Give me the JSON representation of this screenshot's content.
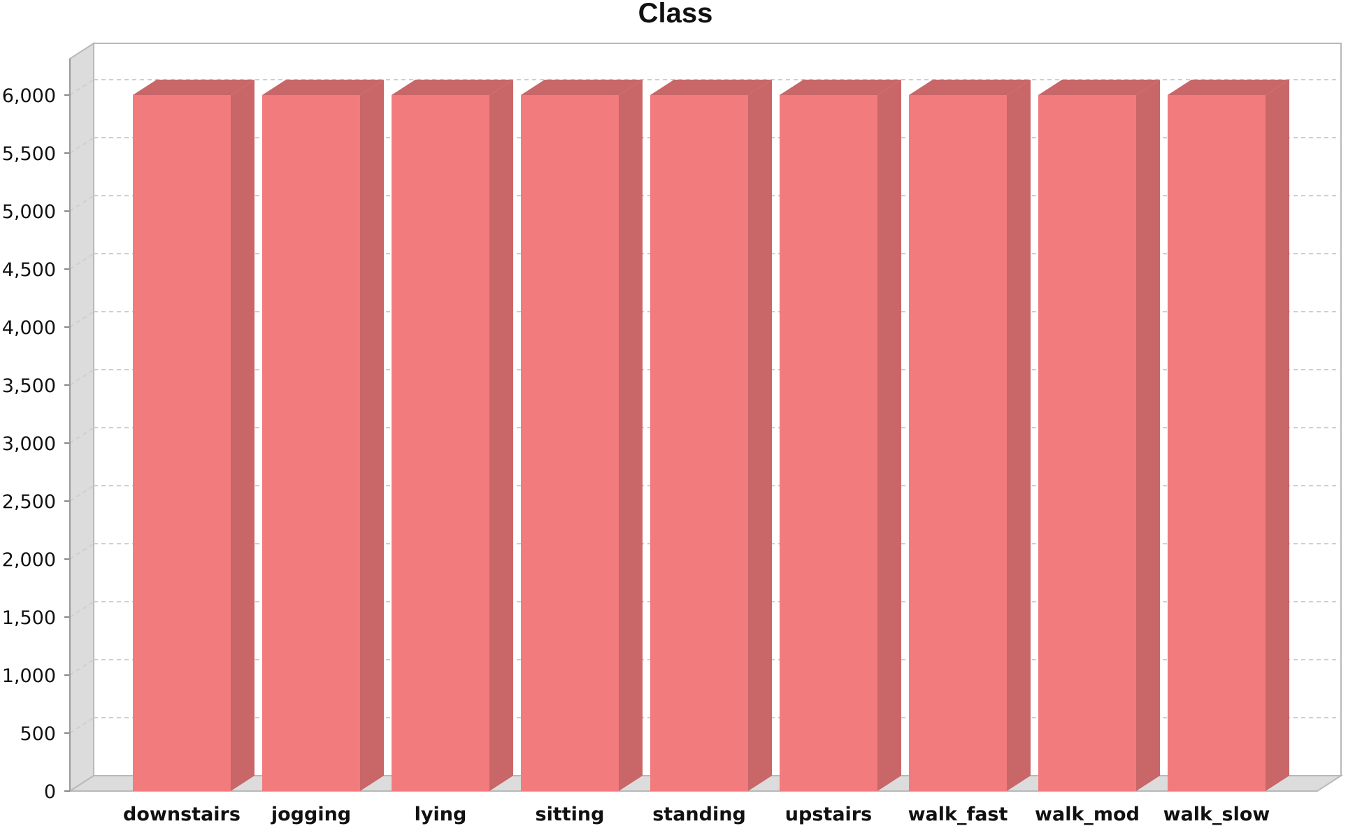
{
  "chart_data": {
    "type": "bar",
    "title": "Class",
    "xlabel": "",
    "ylabel": "",
    "categories": [
      "downstairs",
      "jogging",
      "lying",
      "sitting",
      "standing",
      "upstairs",
      "walk_fast",
      "walk_mod",
      "walk_slow"
    ],
    "values": [
      6000,
      6000,
      6000,
      6000,
      6000,
      6000,
      6000,
      6000,
      6000
    ],
    "ylim": [
      0,
      6000
    ],
    "yticks": [
      0,
      500,
      1000,
      1500,
      2000,
      2500,
      3000,
      3500,
      4000,
      4500,
      5000,
      5500,
      6000
    ],
    "ytick_labels": [
      "0",
      "500",
      "1,000",
      "1,500",
      "2,000",
      "2,500",
      "3,000",
      "3,500",
      "4,000",
      "4,500",
      "5,000",
      "5,500",
      "6,000"
    ],
    "grid": true,
    "style": "3d",
    "colors": {
      "bar_front": "#f27b7e",
      "bar_side": "#c86668",
      "bar_top": "#c86668",
      "grid": "#cfcfcf",
      "wall": "#dcdcdc"
    }
  }
}
